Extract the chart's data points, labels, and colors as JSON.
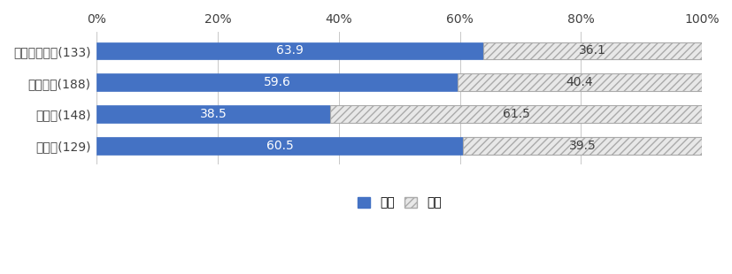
{
  "categories": [
    "殺人・傷害等(133)",
    "交通事故(188)",
    "性犯罪(148)",
    "その他(129)"
  ],
  "male_values": [
    63.9,
    59.6,
    38.5,
    60.5
  ],
  "female_values": [
    36.1,
    40.4,
    61.5,
    39.5
  ],
  "male_color": "#4472C4",
  "female_color": "#E8E8E8",
  "female_hatch": "////",
  "female_edgecolor": "#AAAAAA",
  "bar_height": 0.55,
  "xlim": [
    0,
    100
  ],
  "xticks": [
    0,
    20,
    40,
    60,
    80,
    100
  ],
  "xticklabels": [
    "0%",
    "20%",
    "40%",
    "60%",
    "80%",
    "100%"
  ],
  "legend_labels": [
    "男性",
    "女性"
  ],
  "text_color": "#404040",
  "label_fontsize": 10,
  "tick_fontsize": 10,
  "legend_fontsize": 10,
  "background_color": "#FFFFFF",
  "male_label_color": "#FFFFFF",
  "female_label_color": "#404040"
}
